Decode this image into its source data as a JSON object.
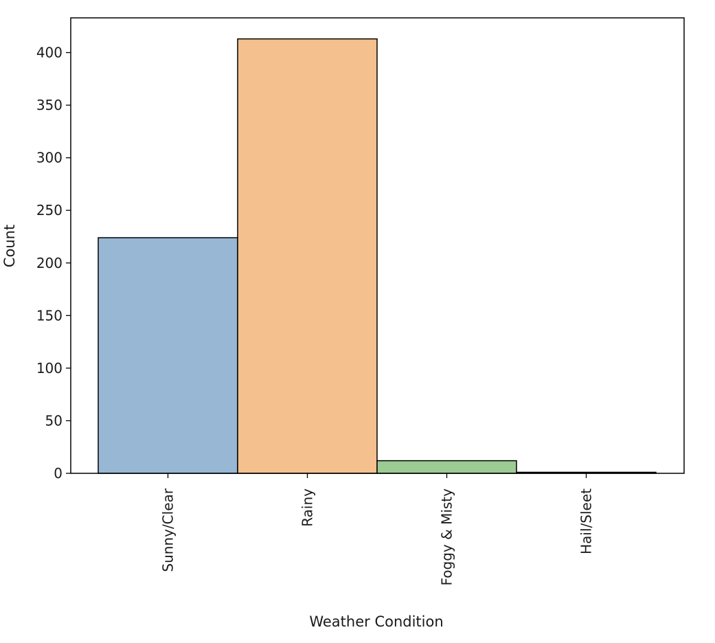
{
  "chart_data": {
    "type": "bar",
    "title": "",
    "xlabel": "Weather Condition",
    "ylabel": "Count",
    "categories": [
      "Sunny/Clear",
      "Rainy",
      "Foggy & Misty",
      "Hail/Sleet"
    ],
    "values": [
      224,
      413,
      12,
      1
    ],
    "colors": [
      "#97b7d4",
      "#f4c08e",
      "#9ccb93",
      "#c4c4c4"
    ],
    "edge_color": "#000000",
    "ylim": [
      0,
      433
    ],
    "yticks": [
      0,
      50,
      100,
      150,
      200,
      250,
      300,
      350,
      400
    ],
    "grid": false,
    "legend": false
  }
}
